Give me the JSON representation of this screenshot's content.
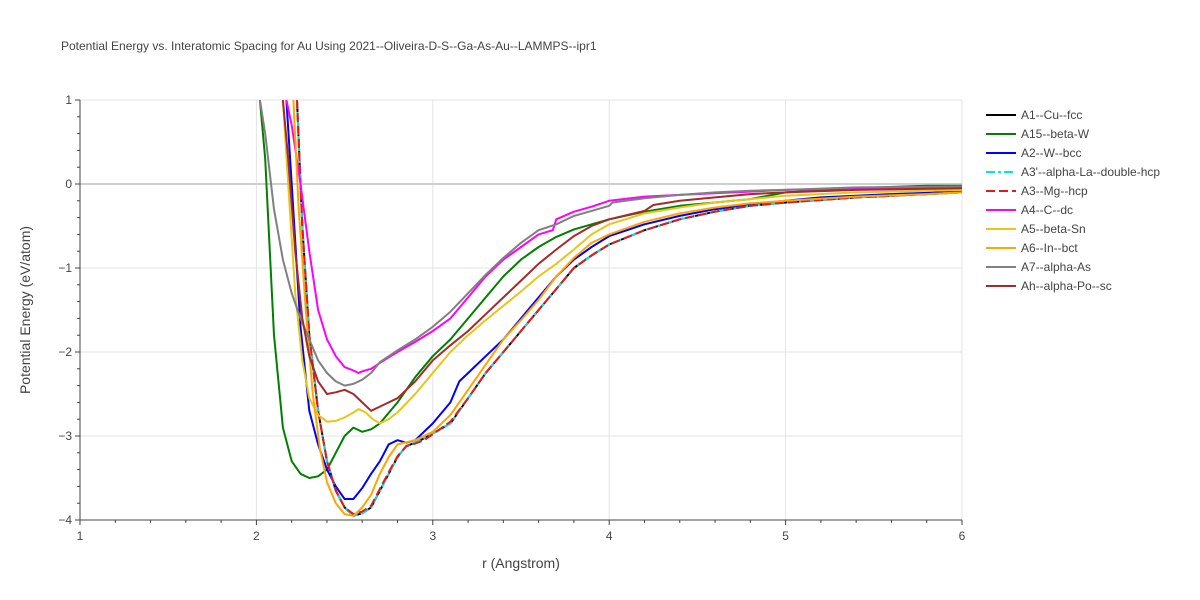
{
  "chart_data": {
    "type": "line",
    "title": "Potential Energy vs. Interatomic Spacing for Au Using 2021--Oliveira-D-S--Ga-As-Au--LAMMPS--ipr1",
    "xlabel": "r (Angstrom)",
    "ylabel": "Potential Energy (eV/atom)",
    "xlim": [
      1,
      6
    ],
    "ylim": [
      -4,
      1
    ],
    "xticks": [
      "1",
      "2",
      "3",
      "4",
      "5",
      "6"
    ],
    "yticks": [
      "1",
      "0",
      "−1",
      "−2",
      "−3",
      "−4"
    ],
    "grid": true,
    "legend_position": "right",
    "series": [
      {
        "name": "A1--Cu--fcc",
        "color": "#000000",
        "dash": "solid",
        "x": [
          2.23,
          2.26,
          2.3,
          2.35,
          2.4,
          2.45,
          2.5,
          2.55,
          2.6,
          2.65,
          2.7,
          2.75,
          2.8,
          2.85,
          2.9,
          2.95,
          3.0,
          3.1,
          3.2,
          3.3,
          3.4,
          3.5,
          3.6,
          3.7,
          3.8,
          3.9,
          4.0,
          4.2,
          4.4,
          4.6,
          4.8,
          5.0,
          5.2,
          5.4,
          5.6,
          5.8,
          6.0
        ],
        "y": [
          1.0,
          -0.5,
          -1.8,
          -2.7,
          -3.3,
          -3.65,
          -3.85,
          -3.95,
          -3.92,
          -3.85,
          -3.65,
          -3.45,
          -3.25,
          -3.12,
          -3.08,
          -3.03,
          -2.97,
          -2.85,
          -2.55,
          -2.25,
          -2.0,
          -1.75,
          -1.5,
          -1.25,
          -1.0,
          -0.85,
          -0.72,
          -0.55,
          -0.42,
          -0.33,
          -0.26,
          -0.22,
          -0.19,
          -0.16,
          -0.14,
          -0.12,
          -0.1
        ]
      },
      {
        "name": "A15--beta-W",
        "color": "#008000",
        "dash": "solid",
        "x": [
          2.02,
          2.05,
          2.1,
          2.15,
          2.2,
          2.25,
          2.3,
          2.35,
          2.4,
          2.45,
          2.5,
          2.55,
          2.6,
          2.65,
          2.7,
          2.8,
          2.9,
          3.0,
          3.1,
          3.2,
          3.3,
          3.4,
          3.5,
          3.6,
          3.7,
          3.8,
          4.0,
          4.2,
          4.4,
          4.6,
          4.8,
          5.0,
          5.4,
          5.8,
          6.0
        ],
        "y": [
          1.0,
          0.3,
          -1.8,
          -2.9,
          -3.3,
          -3.45,
          -3.5,
          -3.48,
          -3.4,
          -3.2,
          -3.0,
          -2.9,
          -2.95,
          -2.92,
          -2.85,
          -2.6,
          -2.3,
          -2.05,
          -1.85,
          -1.6,
          -1.35,
          -1.1,
          -0.9,
          -0.75,
          -0.63,
          -0.54,
          -0.42,
          -0.33,
          -0.26,
          -0.22,
          -0.18,
          -0.1,
          -0.05,
          -0.02,
          -0.02
        ]
      },
      {
        "name": "A2--W--bcc",
        "color": "#0000ff",
        "dash": "solid",
        "x": [
          2.17,
          2.2,
          2.25,
          2.3,
          2.35,
          2.4,
          2.45,
          2.5,
          2.55,
          2.6,
          2.65,
          2.7,
          2.75,
          2.8,
          2.85,
          2.9,
          3.0,
          3.1,
          3.15,
          3.2,
          3.3,
          3.4,
          3.5,
          3.6,
          3.7,
          3.8,
          3.9,
          4.0,
          4.2,
          4.4,
          4.6,
          4.8,
          5.0,
          5.2,
          5.6,
          6.0
        ],
        "y": [
          1.0,
          0.0,
          -1.7,
          -2.7,
          -3.1,
          -3.4,
          -3.6,
          -3.75,
          -3.75,
          -3.62,
          -3.45,
          -3.3,
          -3.1,
          -3.05,
          -3.08,
          -3.05,
          -2.85,
          -2.6,
          -2.35,
          -2.25,
          -2.05,
          -1.85,
          -1.6,
          -1.35,
          -1.1,
          -0.9,
          -0.75,
          -0.62,
          -0.48,
          -0.38,
          -0.3,
          -0.24,
          -0.2,
          -0.16,
          -0.12,
          -0.09
        ]
      },
      {
        "name": "A3'--alpha-La--double-hcp",
        "color": "#00e5e5",
        "dash": "dashdot",
        "x": [
          2.23,
          2.26,
          2.3,
          2.35,
          2.4,
          2.45,
          2.5,
          2.55,
          2.6,
          2.65,
          2.7,
          2.75,
          2.8,
          2.85,
          2.9,
          2.95,
          3.0,
          3.1,
          3.2,
          3.3,
          3.4,
          3.5,
          3.6,
          3.7,
          3.8,
          3.9,
          4.0,
          4.2,
          4.4,
          4.6,
          4.8,
          5.0,
          5.2,
          5.4,
          5.6,
          5.8,
          6.0
        ],
        "y": [
          1.0,
          -0.5,
          -1.8,
          -2.7,
          -3.3,
          -3.65,
          -3.85,
          -3.95,
          -3.92,
          -3.85,
          -3.65,
          -3.45,
          -3.25,
          -3.12,
          -3.08,
          -3.03,
          -2.97,
          -2.85,
          -2.55,
          -2.25,
          -2.0,
          -1.75,
          -1.5,
          -1.25,
          -1.0,
          -0.85,
          -0.72,
          -0.55,
          -0.42,
          -0.33,
          -0.26,
          -0.22,
          -0.19,
          -0.16,
          -0.14,
          -0.12,
          -0.1
        ]
      },
      {
        "name": "A3--Mg--hcp",
        "color": "#e31a1c",
        "dash": "dash",
        "x": [
          2.23,
          2.26,
          2.3,
          2.35,
          2.4,
          2.45,
          2.5,
          2.55,
          2.6,
          2.65,
          2.7,
          2.75,
          2.8,
          2.85,
          2.9,
          2.95,
          3.0,
          3.1,
          3.2,
          3.3,
          3.4,
          3.5,
          3.6,
          3.7,
          3.8,
          3.9,
          4.0,
          4.2,
          4.4,
          4.6,
          4.8,
          5.0,
          5.2,
          5.4,
          5.6,
          5.8,
          6.0
        ],
        "y": [
          1.0,
          -0.5,
          -1.8,
          -2.7,
          -3.3,
          -3.65,
          -3.85,
          -3.93,
          -3.9,
          -3.83,
          -3.63,
          -3.43,
          -3.24,
          -3.12,
          -3.09,
          -3.05,
          -2.98,
          -2.83,
          -2.55,
          -2.25,
          -2.0,
          -1.75,
          -1.5,
          -1.25,
          -1.0,
          -0.85,
          -0.72,
          -0.55,
          -0.42,
          -0.33,
          -0.26,
          -0.22,
          -0.19,
          -0.16,
          -0.14,
          -0.12,
          -0.1
        ]
      },
      {
        "name": "A4--C--dc",
        "color": "#ff00ff",
        "dash": "solid",
        "x": [
          2.17,
          2.2,
          2.25,
          2.3,
          2.35,
          2.4,
          2.45,
          2.5,
          2.55,
          2.58,
          2.6,
          2.65,
          2.7,
          2.8,
          2.9,
          3.0,
          3.1,
          3.2,
          3.3,
          3.4,
          3.5,
          3.6,
          3.68,
          3.7,
          3.8,
          3.9,
          4.0,
          4.2,
          4.4,
          4.6,
          4.8,
          5.0,
          5.4,
          6.0
        ],
        "y": [
          1.0,
          0.7,
          0.0,
          -0.8,
          -1.5,
          -1.85,
          -2.05,
          -2.18,
          -2.22,
          -2.25,
          -2.23,
          -2.2,
          -2.13,
          -2.0,
          -1.88,
          -1.75,
          -1.6,
          -1.35,
          -1.1,
          -0.9,
          -0.75,
          -0.6,
          -0.55,
          -0.42,
          -0.33,
          -0.27,
          -0.2,
          -0.15,
          -0.13,
          -0.11,
          -0.09,
          -0.07,
          -0.05,
          -0.04
        ]
      },
      {
        "name": "A5--beta-Sn",
        "color": "#e6c619",
        "dash": "solid",
        "x": [
          2.15,
          2.18,
          2.22,
          2.26,
          2.3,
          2.35,
          2.4,
          2.45,
          2.5,
          2.55,
          2.58,
          2.62,
          2.66,
          2.7,
          2.75,
          2.8,
          2.9,
          3.0,
          3.1,
          3.2,
          3.3,
          3.4,
          3.5,
          3.6,
          3.7,
          3.8,
          3.9,
          4.0,
          4.2,
          4.4,
          4.6,
          4.8,
          5.0,
          5.4,
          6.0
        ],
        "y": [
          1.0,
          0.0,
          -1.3,
          -2.1,
          -2.55,
          -2.75,
          -2.83,
          -2.82,
          -2.78,
          -2.72,
          -2.68,
          -2.72,
          -2.8,
          -2.85,
          -2.8,
          -2.72,
          -2.5,
          -2.25,
          -2.0,
          -1.8,
          -1.62,
          -1.45,
          -1.28,
          -1.1,
          -0.95,
          -0.78,
          -0.6,
          -0.48,
          -0.35,
          -0.28,
          -0.22,
          -0.18,
          -0.14,
          -0.1,
          -0.07
        ]
      },
      {
        "name": "A6--In--bct",
        "color": "#ffa500",
        "dash": "solid",
        "x": [
          2.21,
          2.24,
          2.28,
          2.32,
          2.36,
          2.4,
          2.45,
          2.5,
          2.55,
          2.6,
          2.65,
          2.7,
          2.75,
          2.8,
          2.9,
          3.0,
          3.1,
          3.2,
          3.3,
          3.4,
          3.5,
          3.6,
          3.7,
          3.8,
          3.9,
          4.0,
          4.2,
          4.4,
          4.6,
          4.8,
          5.0,
          5.4,
          5.8,
          6.0
        ],
        "y": [
          1.0,
          -0.3,
          -1.5,
          -2.5,
          -3.15,
          -3.55,
          -3.8,
          -3.93,
          -3.95,
          -3.85,
          -3.7,
          -3.45,
          -3.25,
          -3.1,
          -3.05,
          -2.95,
          -2.75,
          -2.45,
          -2.15,
          -1.85,
          -1.62,
          -1.38,
          -1.1,
          -0.88,
          -0.7,
          -0.6,
          -0.45,
          -0.35,
          -0.28,
          -0.23,
          -0.2,
          -0.15,
          -0.12,
          -0.1
        ]
      },
      {
        "name": "A7--alpha-As",
        "color": "#808080",
        "dash": "solid",
        "x": [
          2.02,
          2.05,
          2.1,
          2.15,
          2.2,
          2.25,
          2.3,
          2.35,
          2.4,
          2.45,
          2.5,
          2.55,
          2.6,
          2.65,
          2.7,
          2.75,
          2.8,
          2.9,
          3.0,
          3.1,
          3.2,
          3.3,
          3.4,
          3.5,
          3.6,
          3.7,
          3.8,
          3.9,
          4.0,
          4.02,
          4.2,
          4.4,
          4.6,
          4.8,
          5.0,
          5.4,
          6.0
        ],
        "y": [
          1.0,
          0.6,
          -0.3,
          -0.9,
          -1.3,
          -1.6,
          -1.85,
          -2.1,
          -2.25,
          -2.35,
          -2.4,
          -2.38,
          -2.33,
          -2.25,
          -2.12,
          -2.05,
          -1.98,
          -1.85,
          -1.7,
          -1.52,
          -1.3,
          -1.08,
          -0.88,
          -0.7,
          -0.55,
          -0.48,
          -0.38,
          -0.32,
          -0.26,
          -0.22,
          -0.17,
          -0.13,
          -0.1,
          -0.08,
          -0.07,
          -0.04,
          -0.03
        ]
      },
      {
        "name": "Ah--alpha-Po--sc",
        "color": "#a52a2a",
        "dash": "solid",
        "x": [
          2.15,
          2.18,
          2.22,
          2.26,
          2.3,
          2.35,
          2.4,
          2.45,
          2.5,
          2.55,
          2.6,
          2.65,
          2.7,
          2.8,
          2.9,
          3.0,
          3.1,
          3.2,
          3.3,
          3.4,
          3.5,
          3.6,
          3.7,
          3.8,
          3.9,
          4.0,
          4.2,
          4.25,
          4.4,
          4.6,
          4.8,
          5.0,
          5.4,
          6.0
        ],
        "y": [
          1.0,
          0.3,
          -0.8,
          -1.6,
          -2.05,
          -2.35,
          -2.5,
          -2.48,
          -2.45,
          -2.5,
          -2.6,
          -2.7,
          -2.65,
          -2.55,
          -2.35,
          -2.1,
          -1.92,
          -1.75,
          -1.55,
          -1.35,
          -1.15,
          -0.95,
          -0.78,
          -0.62,
          -0.5,
          -0.42,
          -0.32,
          -0.25,
          -0.2,
          -0.16,
          -0.12,
          -0.1,
          -0.07,
          -0.05
        ]
      }
    ]
  }
}
